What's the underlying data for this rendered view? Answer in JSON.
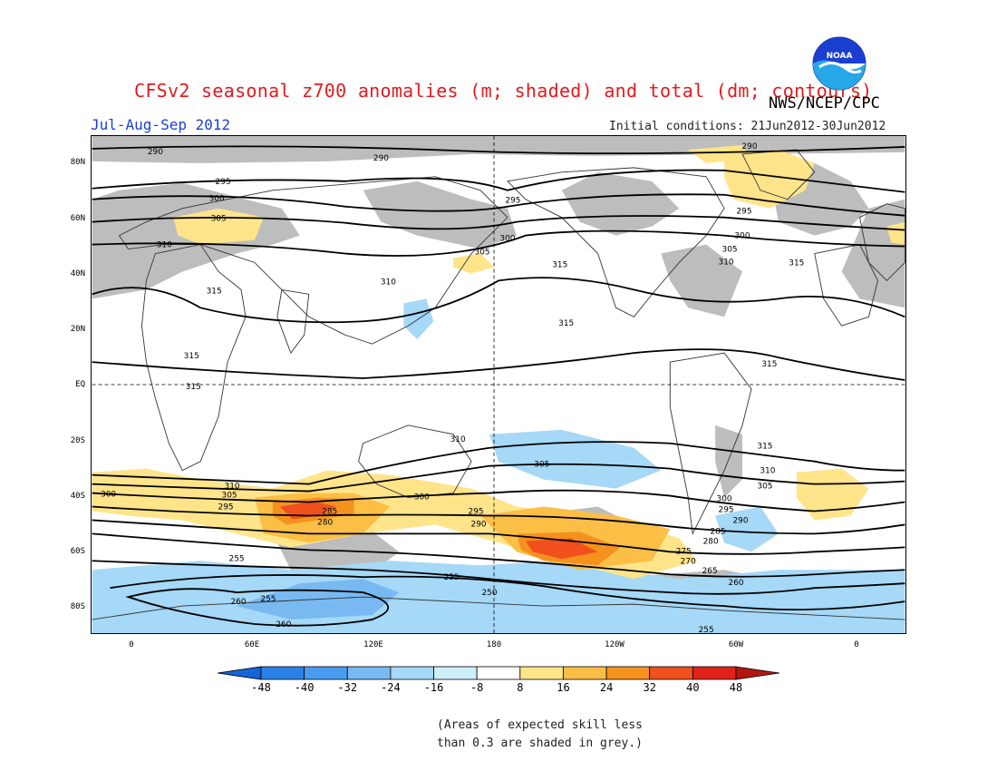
{
  "header": {
    "title": "CFSv2 seasonal z700 anomalies (m; shaded) and total (dm; contours)",
    "agency": "NWS/NCEP/CPC",
    "logo_text": "NOAA",
    "season": "Jul-Aug-Sep 2012",
    "initial_conditions": "Initial conditions: 21Jun2012-30Jun2012"
  },
  "map": {
    "lat_labels": [
      "80N",
      "60N",
      "40N",
      "20N",
      "EQ",
      "20S",
      "40S",
      "60S",
      "80S"
    ],
    "lon_labels": [
      "0",
      "60E",
      "120E",
      "180",
      "120W",
      "60W",
      "0"
    ],
    "contour_labels": [
      "290",
      "295",
      "300",
      "305",
      "310",
      "315",
      "250",
      "255",
      "260",
      "265",
      "270",
      "275",
      "280",
      "285"
    ]
  },
  "colorbar": {
    "labels": [
      "-48",
      "-40",
      "-32",
      "-24",
      "-16",
      "-8",
      "8",
      "16",
      "24",
      "32",
      "40",
      "48"
    ],
    "colors": [
      "#1565d8",
      "#2b82e6",
      "#4a9cf0",
      "#78b9f2",
      "#a6d8f7",
      "#cdeffa",
      "#ffffff",
      "#ffe48a",
      "#fbbf45",
      "#f5921e",
      "#f0501c",
      "#e0221a",
      "#b3160f"
    ]
  },
  "footnote": {
    "line1": "(Areas of expected skill less",
    "line2": "than 0.3 are shaded in grey.)"
  }
}
